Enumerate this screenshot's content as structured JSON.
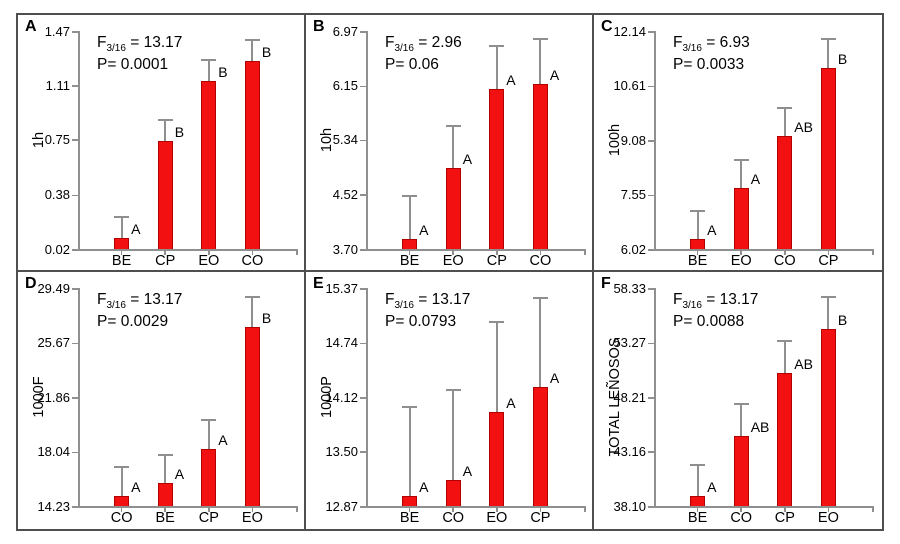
{
  "style": {
    "bar_fill": "#F21010",
    "bar_border": "#B00000",
    "error_color": "#8F8F8F",
    "axis_color": "#8F8F8F",
    "frame_color": "#4F4F4F",
    "text_color": "#000000"
  },
  "chart_data": [
    {
      "type": "bar",
      "panel": "A",
      "ylabel": "1h",
      "ytick_labels": [
        "1.47",
        "1.11",
        "0.75",
        "0.38",
        "0.02"
      ],
      "ylim": [
        0.02,
        1.47
      ],
      "categories": [
        "BE",
        "CP",
        "EO",
        "CO"
      ],
      "values": [
        0.09,
        0.74,
        1.14,
        1.27
      ],
      "error_top": [
        0.23,
        0.88,
        1.28,
        1.41
      ],
      "sig_letters": [
        "A",
        "B",
        "B",
        "B"
      ],
      "f_prefix": "F",
      "f_sub": "3/16",
      "f_rest": " = 13.17",
      "p_text": "P= 0.0001",
      "grid": false,
      "legend": false
    },
    {
      "type": "bar",
      "panel": "B",
      "ylabel": "10h",
      "ytick_labels": [
        "6.97",
        "6.15",
        "5.34",
        "4.52",
        "3.70"
      ],
      "ylim": [
        3.7,
        6.97
      ],
      "categories": [
        "BE",
        "EO",
        "CP",
        "CO"
      ],
      "values": [
        3.85,
        4.92,
        6.1,
        6.18
      ],
      "error_top": [
        4.5,
        5.55,
        6.74,
        6.85
      ],
      "sig_letters": [
        "A",
        "A",
        "A",
        "A"
      ],
      "f_prefix": "F",
      "f_sub": "3/16",
      "f_rest": " = 2.96",
      "p_text": "P= 0.06",
      "grid": false,
      "legend": false
    },
    {
      "type": "bar",
      "panel": "C",
      "ylabel": "100h",
      "ytick_labels": [
        "12.14",
        "10.61",
        "9.08",
        "7.55",
        "6.02"
      ],
      "ylim": [
        6.02,
        12.14
      ],
      "categories": [
        "BE",
        "EO",
        "CO",
        "CP"
      ],
      "values": [
        6.3,
        7.72,
        9.19,
        11.11
      ],
      "error_top": [
        7.08,
        8.53,
        9.99,
        11.91
      ],
      "sig_letters": [
        "A",
        "A",
        "AB",
        "B"
      ],
      "f_prefix": "F",
      "f_sub": "3/16",
      "f_rest": " = 6.93",
      "p_text": "P= 0.0033",
      "grid": false,
      "legend": false
    },
    {
      "type": "bar",
      "panel": "D",
      "ylabel": "1000F",
      "ytick_labels": [
        "29.49",
        "25.67",
        "21.86",
        "18.04",
        "14.23"
      ],
      "ylim": [
        14.23,
        29.49
      ],
      "categories": [
        "CO",
        "BE",
        "CP",
        "EO"
      ],
      "values": [
        14.93,
        15.81,
        18.25,
        26.79
      ],
      "error_top": [
        16.97,
        17.79,
        20.28,
        28.84
      ],
      "sig_letters": [
        "A",
        "A",
        "A",
        "B"
      ],
      "f_prefix": "F",
      "f_sub": "3/16",
      "f_rest": " = 13.17",
      "p_text": "P= 0.0029",
      "grid": false,
      "legend": false
    },
    {
      "type": "bar",
      "panel": "E",
      "ylabel": "1000P",
      "ytick_labels": [
        "15.37",
        "14.74",
        "14.12",
        "13.50",
        "12.87"
      ],
      "ylim": [
        12.87,
        15.37
      ],
      "categories": [
        "BE",
        "CO",
        "EO",
        "CP"
      ],
      "values": [
        12.98,
        13.17,
        13.95,
        14.23
      ],
      "error_top": [
        14.0,
        14.2,
        14.98,
        15.26
      ],
      "sig_letters": [
        "A",
        "A",
        "A",
        "A"
      ],
      "f_prefix": "F",
      "f_sub": "3/16",
      "f_rest": " = 13.17",
      "p_text": "P= 0.0793",
      "grid": false,
      "legend": false
    },
    {
      "type": "bar",
      "panel": "F",
      "ylabel": "TOTAL LEÑOSOS",
      "ytick_labels": [
        "58.33",
        "53.27",
        "48.21",
        "43.16",
        "38.10"
      ],
      "ylim": [
        38.1,
        58.33
      ],
      "categories": [
        "BE",
        "CO",
        "CP",
        "EO"
      ],
      "values": [
        39.03,
        44.58,
        50.44,
        54.54
      ],
      "error_top": [
        41.89,
        47.6,
        53.4,
        57.53
      ],
      "sig_letters": [
        "A",
        "AB",
        "AB",
        "B"
      ],
      "f_prefix": "F",
      "f_sub": "3/16",
      "f_rest": " = 13.17",
      "p_text": "P= 0.0088",
      "grid": false,
      "legend": false
    }
  ]
}
